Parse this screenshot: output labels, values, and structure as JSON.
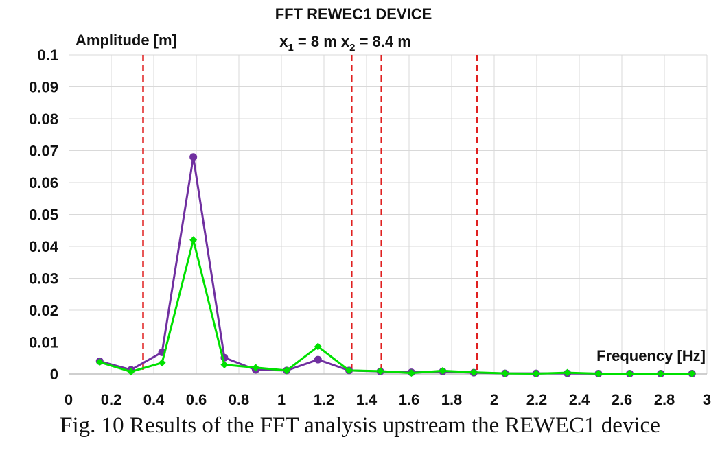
{
  "chart_data": {
    "type": "line",
    "title": "FFT REWEC1 DEVICE",
    "subtitle": {
      "x1_sym": "x",
      "x1_sub": "1",
      "x1_val": " = 8 m ",
      "x2_sym": "x",
      "x2_sub": "2",
      "x2_val": " = 8.4 m"
    },
    "ylabel": "Amplitude [m]",
    "xlabel": "Frequency [Hz]",
    "xlim": [
      0,
      3
    ],
    "ylim": [
      0,
      0.1
    ],
    "x_ticks": [
      "0",
      "0.2",
      "0.4",
      "0.6",
      "0.8",
      "1",
      "1.2",
      "1.4",
      "1.6",
      "1.8",
      "2",
      "2.2",
      "2.4",
      "2.6",
      "2.8",
      "3"
    ],
    "y_ticks": [
      "0",
      "0.01",
      "0.02",
      "0.03",
      "0.04",
      "0.05",
      "0.06",
      "0.07",
      "0.08",
      "0.09",
      "0.1"
    ],
    "grid": true,
    "vlines": [
      0.35,
      1.33,
      1.47,
      1.92
    ],
    "x": [
      0.146,
      0.293,
      0.439,
      0.586,
      0.732,
      0.879,
      1.025,
      1.172,
      1.318,
      1.465,
      1.611,
      1.758,
      1.904,
      2.051,
      2.197,
      2.344,
      2.49,
      2.637,
      2.783,
      2.93
    ],
    "series": [
      {
        "color": "#7030a0",
        "marker": "circle",
        "values": [
          0.004,
          0.0013,
          0.0068,
          0.068,
          0.0051,
          0.0013,
          0.0011,
          0.0045,
          0.0011,
          0.0008,
          0.0005,
          0.0008,
          0.0004,
          0.0002,
          0.0002,
          0.0002,
          0.0001,
          0.0001,
          0.0001,
          0.0001
        ]
      },
      {
        "color": "#00e000",
        "marker": "diamond",
        "values": [
          0.0037,
          0.0007,
          0.0035,
          0.042,
          0.0029,
          0.002,
          0.0011,
          0.0086,
          0.0011,
          0.0009,
          0.0003,
          0.001,
          0.0005,
          0.0002,
          0.0001,
          0.0004,
          0.0001,
          0.0001,
          0.0001,
          0.0001
        ]
      }
    ],
    "vline_color": "#e02020"
  },
  "caption": "Fig. 10   Results of the FFT analysis upstream the REWEC1 device"
}
